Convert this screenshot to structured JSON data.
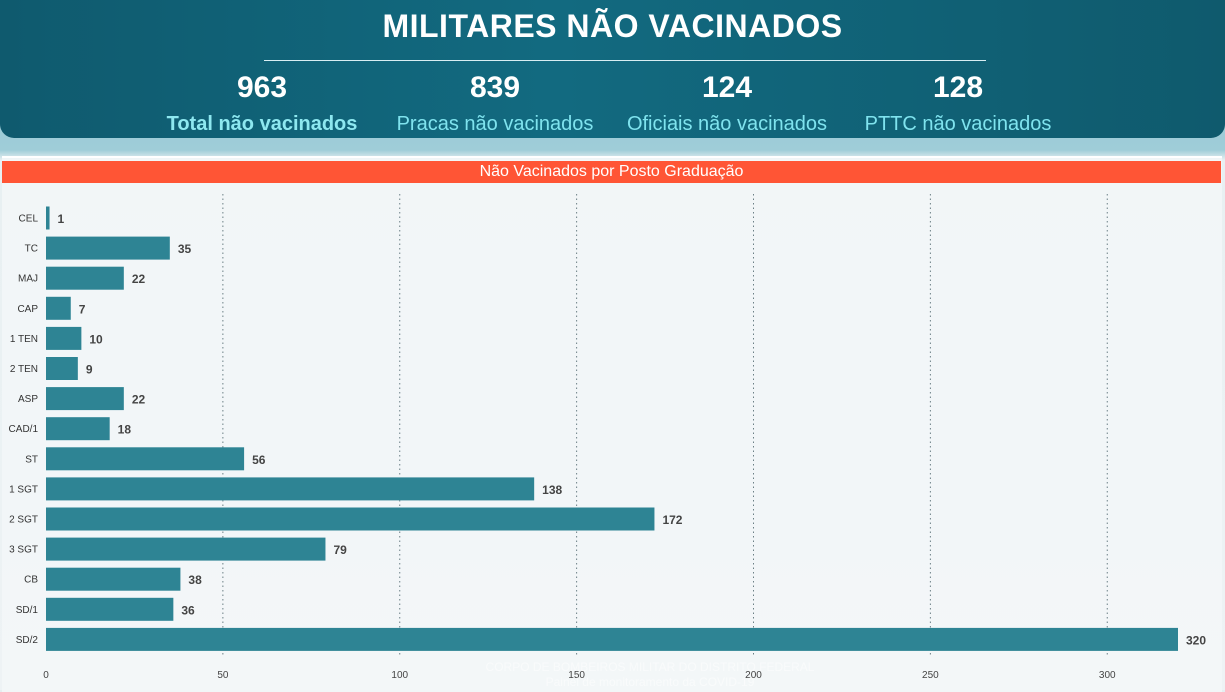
{
  "header": {
    "title": "MILITARES NÃO VACINADOS",
    "kpis": [
      {
        "value": "963",
        "label": "Total não vacinados"
      },
      {
        "value": "839",
        "label": "Pracas não vacinados"
      },
      {
        "value": "124",
        "label": "Oficiais não vacinados"
      },
      {
        "value": "128",
        "label": "PTTC não vacinados"
      }
    ]
  },
  "panel": {
    "title": "Não Vacinados por Posto Graduação"
  },
  "footer": {
    "line1": "CORPO DE BOMBEIROS MILITAR DO DISTRITO FEDERAL",
    "line2": "Painel de monitoramento da COVID-19"
  },
  "colors": {
    "bar": "#2e8494",
    "accent_bar": "#ff5535",
    "header": "#126a80"
  },
  "chart_data": {
    "type": "bar",
    "orientation": "horizontal",
    "title": "Não Vacinados por Posto Graduação",
    "categories": [
      "CEL",
      "TC",
      "MAJ",
      "CAP",
      "1 TEN",
      "2 TEN",
      "ASP",
      "CAD/1",
      "ST",
      "1 SGT",
      "2 SGT",
      "3 SGT",
      "CB",
      "SD/1",
      "SD/2"
    ],
    "values": [
      1,
      35,
      22,
      7,
      10,
      9,
      22,
      18,
      56,
      138,
      172,
      79,
      38,
      36,
      320
    ],
    "xlim": [
      0,
      320
    ],
    "xticks": [
      0,
      50,
      100,
      150,
      200,
      250,
      300
    ],
    "grid": "vertical-dotted",
    "data_labels": true
  }
}
